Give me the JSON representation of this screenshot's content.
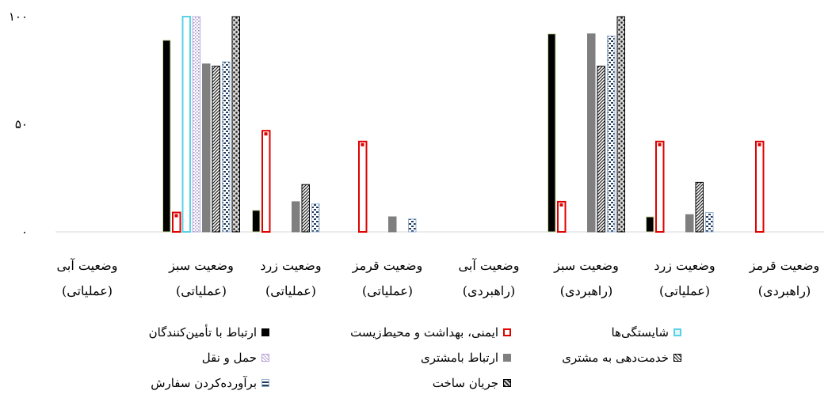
{
  "chart_data": {
    "type": "bar",
    "y_ticks": [
      "۰",
      "۵۰",
      "۱۰۰"
    ],
    "y_tick_values": [
      0,
      50,
      100
    ],
    "ylim": [
      0,
      100
    ],
    "categories": [
      [
        "وضعیت آبی",
        "(عملیاتی)"
      ],
      [
        "وضعیت سبز",
        "(عملیاتی)"
      ],
      [
        "وضعیت زرد",
        "(عملیاتی)"
      ],
      [
        "وضعیت قرمز",
        "(عملیاتی)"
      ],
      [
        "وضعیت آبی",
        "(راهبردی)"
      ],
      [
        "وضعیت سبز",
        "(راهبردی)"
      ],
      [
        "وضعیت زرد",
        "(عملیاتی)"
      ],
      [
        "وضعیت قرمز",
        "(راهبردی)"
      ]
    ],
    "series": [
      {
        "name": "ارتباط با تأمین‌کنندگان",
        "color": "#000000",
        "values": [
          0,
          89,
          10,
          0,
          0,
          92,
          7,
          0
        ]
      },
      {
        "name": "ایمنی، بهداشت و محیط‌زیست",
        "color": "#e00000",
        "values": [
          0,
          9,
          47,
          42,
          0,
          14,
          42,
          42
        ]
      },
      {
        "name": "شایستگی‌ها",
        "color": "#5ad2e6",
        "values": [
          0,
          100,
          0,
          0,
          0,
          0,
          0,
          0
        ]
      },
      {
        "name": "حمل و نقل",
        "color": "#b9a6d9",
        "values": [
          0,
          100,
          0,
          0,
          0,
          0,
          0,
          0
        ]
      },
      {
        "name": "ارتباط بامشتری",
        "color": "#7f7f7f",
        "values": [
          0,
          78,
          14,
          7,
          0,
          92,
          8,
          0
        ]
      },
      {
        "name": "خدمت‌دهی به مشتری",
        "color": "#333333",
        "values": [
          0,
          77,
          22,
          0,
          0,
          77,
          23,
          0
        ]
      },
      {
        "name": "برآورده‌کردن سفارش",
        "color": "#2c4a6b",
        "values": [
          0,
          79,
          13,
          6,
          0,
          91,
          9,
          0
        ]
      },
      {
        "name": "جریان ساخت",
        "color": "#404040",
        "values": [
          0,
          100,
          0,
          0,
          0,
          100,
          0,
          0
        ]
      }
    ]
  }
}
